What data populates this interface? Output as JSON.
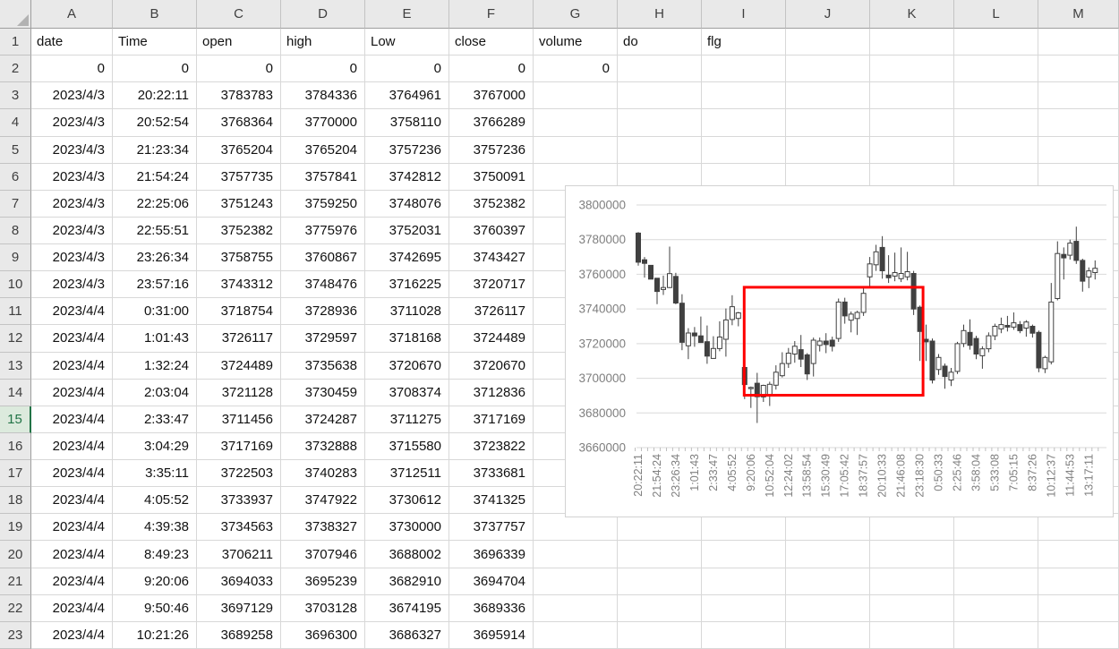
{
  "sheet": {
    "column_headers": [
      "A",
      "B",
      "C",
      "D",
      "E",
      "F",
      "G",
      "H",
      "I",
      "J",
      "K",
      "L",
      "M"
    ],
    "active_row": 15,
    "rows": [
      {
        "n": 1,
        "align": "left",
        "values": [
          "date",
          "Time",
          "open",
          "high",
          "Low",
          "close",
          "volume",
          "do",
          "flg"
        ]
      },
      {
        "n": 2,
        "align": "right",
        "values": [
          "0",
          "0",
          "0",
          "0",
          "0",
          "0",
          "0",
          "",
          ""
        ]
      },
      {
        "n": 3,
        "align": "right",
        "values": [
          "2023/4/3",
          "20:22:11",
          "3783783",
          "3784336",
          "3764961",
          "3767000",
          "",
          "",
          ""
        ]
      },
      {
        "n": 4,
        "align": "right",
        "values": [
          "2023/4/3",
          "20:52:54",
          "3768364",
          "3770000",
          "3758110",
          "3766289",
          "",
          "",
          ""
        ]
      },
      {
        "n": 5,
        "align": "right",
        "values": [
          "2023/4/3",
          "21:23:34",
          "3765204",
          "3765204",
          "3757236",
          "3757236",
          "",
          "",
          ""
        ]
      },
      {
        "n": 6,
        "align": "right",
        "values": [
          "2023/4/3",
          "21:54:24",
          "3757735",
          "3757841",
          "3742812",
          "3750091",
          "",
          "",
          ""
        ]
      },
      {
        "n": 7,
        "align": "right",
        "values": [
          "2023/4/3",
          "22:25:06",
          "3751243",
          "3759250",
          "3748076",
          "3752382",
          "",
          "",
          ""
        ]
      },
      {
        "n": 8,
        "align": "right",
        "values": [
          "2023/4/3",
          "22:55:51",
          "3752382",
          "3775976",
          "3752031",
          "3760397",
          "",
          "",
          ""
        ]
      },
      {
        "n": 9,
        "align": "right",
        "values": [
          "2023/4/3",
          "23:26:34",
          "3758755",
          "3760867",
          "3742695",
          "3743427",
          "",
          "",
          ""
        ]
      },
      {
        "n": 10,
        "align": "right",
        "values": [
          "2023/4/3",
          "23:57:16",
          "3743312",
          "3748476",
          "3716225",
          "3720717",
          "",
          "",
          ""
        ]
      },
      {
        "n": 11,
        "align": "right",
        "values": [
          "2023/4/4",
          "0:31:00",
          "3718754",
          "3728936",
          "3711028",
          "3726117",
          "",
          "",
          ""
        ]
      },
      {
        "n": 12,
        "align": "right",
        "values": [
          "2023/4/4",
          "1:01:43",
          "3726117",
          "3729597",
          "3718168",
          "3724489",
          "",
          "",
          ""
        ]
      },
      {
        "n": 13,
        "align": "right",
        "values": [
          "2023/4/4",
          "1:32:24",
          "3724489",
          "3735638",
          "3720670",
          "3720670",
          "",
          "",
          ""
        ]
      },
      {
        "n": 14,
        "align": "right",
        "values": [
          "2023/4/4",
          "2:03:04",
          "3721128",
          "3730459",
          "3708374",
          "3712836",
          "",
          "",
          ""
        ]
      },
      {
        "n": 15,
        "align": "right",
        "values": [
          "2023/4/4",
          "2:33:47",
          "3711456",
          "3724287",
          "3711275",
          "3717169",
          "",
          "",
          ""
        ]
      },
      {
        "n": 16,
        "align": "right",
        "values": [
          "2023/4/4",
          "3:04:29",
          "3717169",
          "3732888",
          "3715580",
          "3723822",
          "",
          "",
          ""
        ]
      },
      {
        "n": 17,
        "align": "right",
        "values": [
          "2023/4/4",
          "3:35:11",
          "3722503",
          "3740283",
          "3712511",
          "3733681",
          "",
          "",
          ""
        ]
      },
      {
        "n": 18,
        "align": "right",
        "values": [
          "2023/4/4",
          "4:05:52",
          "3733937",
          "3747922",
          "3730612",
          "3741325",
          "",
          "",
          ""
        ]
      },
      {
        "n": 19,
        "align": "right",
        "values": [
          "2023/4/4",
          "4:39:38",
          "3734563",
          "3738327",
          "3730000",
          "3737757",
          "",
          "",
          ""
        ]
      },
      {
        "n": 20,
        "align": "right",
        "values": [
          "2023/4/4",
          "8:49:23",
          "3706211",
          "3707946",
          "3688002",
          "3696339",
          "",
          "",
          ""
        ]
      },
      {
        "n": 21,
        "align": "right",
        "values": [
          "2023/4/4",
          "9:20:06",
          "3694033",
          "3695239",
          "3682910",
          "3694704",
          "",
          "",
          ""
        ]
      },
      {
        "n": 22,
        "align": "right",
        "values": [
          "2023/4/4",
          "9:50:46",
          "3697129",
          "3703128",
          "3674195",
          "3689336",
          "",
          "",
          ""
        ]
      },
      {
        "n": 23,
        "align": "right",
        "values": [
          "2023/4/4",
          "10:21:26",
          "3689258",
          "3696300",
          "3686327",
          "3695914",
          "",
          "",
          ""
        ]
      }
    ]
  },
  "chart_data": {
    "type": "candlestick",
    "ylim": [
      3660000,
      3800000
    ],
    "y_ticks": [
      3800000,
      3780000,
      3760000,
      3740000,
      3720000,
      3700000,
      3680000,
      3660000
    ],
    "x_tick_every": 3,
    "x_tick_labels": [
      "20:22:11",
      "21:54:24",
      "23:26:34",
      "1:01:43",
      "2:33:47",
      "4:05:52",
      "9:20:06",
      "10:52:04",
      "12:24:02",
      "13:58:54",
      "15:30:49",
      "17:05:42",
      "18:37:57",
      "20:10:33",
      "21:46:08",
      "23:18:30",
      "0:50:33",
      "2:25:46",
      "3:58:04",
      "5:33:08",
      "7:05:15",
      "8:37:26",
      "10:12:37",
      "11:44:53",
      "13:17:11"
    ],
    "grid": true,
    "colors": {
      "up_fill": "#ffffff",
      "down_fill": "#404040",
      "outline": "#404040",
      "grid": "#d9d9d9",
      "axis": "#bfbfbf",
      "axis_text": "#7f7f7f",
      "annotation": "#fe0000"
    },
    "candles": [
      [
        3783783,
        3784336,
        3764961,
        3767000
      ],
      [
        3768364,
        3770000,
        3758110,
        3766289
      ],
      [
        3765204,
        3765204,
        3757236,
        3757236
      ],
      [
        3757735,
        3757841,
        3742812,
        3750091
      ],
      [
        3751243,
        3759250,
        3748076,
        3752382
      ],
      [
        3752382,
        3775976,
        3752031,
        3760397
      ],
      [
        3758755,
        3760867,
        3742695,
        3743427
      ],
      [
        3743312,
        3748476,
        3716225,
        3720717
      ],
      [
        3718754,
        3728936,
        3711028,
        3726117
      ],
      [
        3726117,
        3729597,
        3718168,
        3724489
      ],
      [
        3724489,
        3735638,
        3720670,
        3720670
      ],
      [
        3721128,
        3730459,
        3708374,
        3712836
      ],
      [
        3711456,
        3724287,
        3711275,
        3717169
      ],
      [
        3717169,
        3732888,
        3715580,
        3723822
      ],
      [
        3722503,
        3740283,
        3712511,
        3733681
      ],
      [
        3733937,
        3747922,
        3730612,
        3741325
      ],
      [
        3734563,
        3738327,
        3730000,
        3737757
      ],
      [
        3706211,
        3707946,
        3688002,
        3696339
      ],
      [
        3694033,
        3695239,
        3682910,
        3694704
      ],
      [
        3697129,
        3703128,
        3674195,
        3689336
      ],
      [
        3689258,
        3696300,
        3686327,
        3695914
      ],
      [
        3690500,
        3698000,
        3684000,
        3696500
      ],
      [
        3696000,
        3707500,
        3693500,
        3703500
      ],
      [
        3701500,
        3715000,
        3700500,
        3708500
      ],
      [
        3708500,
        3717500,
        3706000,
        3714500
      ],
      [
        3714000,
        3721500,
        3709000,
        3718500
      ],
      [
        3716500,
        3725000,
        3706500,
        3711000
      ],
      [
        3713500,
        3714500,
        3699000,
        3702500
      ],
      [
        3708500,
        3723500,
        3701000,
        3722000
      ],
      [
        3719000,
        3723500,
        3715500,
        3721500
      ],
      [
        3721500,
        3726000,
        3714500,
        3719500
      ],
      [
        3722000,
        3724000,
        3715500,
        3718500
      ],
      [
        3723000,
        3746000,
        3721000,
        3744000
      ],
      [
        3744000,
        3746500,
        3731500,
        3736000
      ],
      [
        3733500,
        3738500,
        3726500,
        3737000
      ],
      [
        3734500,
        3739000,
        3725000,
        3738000
      ],
      [
        3738000,
        3752000,
        3736000,
        3749000
      ],
      [
        3758500,
        3770000,
        3752000,
        3766000
      ],
      [
        3765500,
        3777000,
        3762000,
        3773000
      ],
      [
        3775500,
        3782000,
        3757500,
        3762000
      ],
      [
        3759500,
        3771000,
        3755000,
        3758000
      ],
      [
        3759000,
        3772500,
        3756000,
        3761000
      ],
      [
        3757500,
        3775500,
        3755500,
        3760500
      ],
      [
        3758500,
        3773000,
        3756500,
        3761500
      ],
      [
        3760500,
        3762000,
        3736500,
        3740000
      ],
      [
        3741000,
        3742000,
        3710000,
        3727000
      ],
      [
        3722500,
        3731000,
        3710000,
        3721000
      ],
      [
        3721500,
        3723000,
        3697000,
        3699000
      ],
      [
        3705000,
        3714000,
        3702000,
        3712000
      ],
      [
        3707000,
        3708500,
        3694000,
        3701000
      ],
      [
        3699000,
        3706000,
        3695500,
        3703500
      ],
      [
        3704000,
        3721000,
        3702500,
        3720000
      ],
      [
        3720000,
        3731000,
        3718000,
        3727500
      ],
      [
        3726500,
        3734000,
        3716500,
        3719000
      ],
      [
        3723000,
        3724500,
        3711000,
        3714000
      ],
      [
        3713000,
        3718500,
        3705500,
        3717000
      ],
      [
        3717000,
        3726500,
        3715000,
        3724500
      ],
      [
        3724500,
        3731500,
        3722000,
        3730000
      ],
      [
        3728500,
        3735000,
        3726000,
        3731000
      ],
      [
        3730500,
        3736000,
        3727000,
        3729500
      ],
      [
        3729500,
        3738000,
        3728000,
        3732000
      ],
      [
        3731000,
        3733000,
        3726000,
        3727500
      ],
      [
        3729000,
        3733500,
        3724000,
        3732500
      ],
      [
        3730000,
        3731000,
        3723500,
        3726000
      ],
      [
        3726500,
        3727500,
        3703500,
        3706000
      ],
      [
        3705500,
        3713000,
        3703000,
        3712000
      ],
      [
        3709500,
        3755000,
        3708000,
        3744000
      ],
      [
        3746000,
        3779000,
        3745000,
        3772000
      ],
      [
        3771500,
        3775500,
        3757000,
        3769500
      ],
      [
        3771000,
        3780000,
        3768500,
        3778000
      ],
      [
        3779000,
        3787500,
        3766000,
        3768000
      ],
      [
        3768000,
        3769000,
        3750000,
        3756000
      ],
      [
        3758500,
        3764000,
        3752000,
        3762000
      ],
      [
        3761000,
        3768000,
        3757000,
        3763500
      ]
    ],
    "annotation_box": {
      "from_candle": 18,
      "to_candle": 46,
      "top": 3752500,
      "bottom": 3690200
    }
  }
}
